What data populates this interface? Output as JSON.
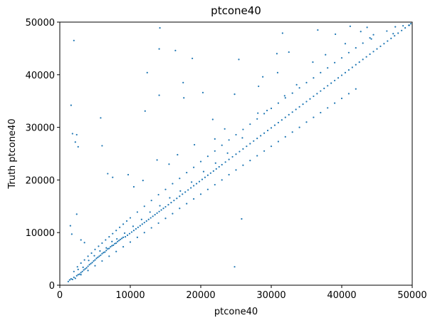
{
  "chart_data": {
    "type": "scatter",
    "title": "ptcone40",
    "xlabel": "ptcone40",
    "ylabel": "Truth ptcone40",
    "xlim": [
      0,
      50000
    ],
    "ylim": [
      0,
      50000
    ],
    "xticks": [
      0,
      10000,
      20000,
      30000,
      40000,
      50000
    ],
    "yticks": [
      0,
      10000,
      20000,
      30000,
      40000,
      50000
    ],
    "xtick_labels": [
      "0",
      "10000",
      "20000",
      "30000",
      "40000",
      "50000"
    ],
    "ytick_labels": [
      "0",
      "10000",
      "20000",
      "30000",
      "40000",
      "50000"
    ],
    "grid": false,
    "legend": "none",
    "marker_color": "#1f77b4",
    "series": [
      {
        "points": [
          [
            1200,
            700
          ],
          [
            1400,
            1000
          ],
          [
            1600,
            1200
          ],
          [
            1800,
            1100
          ],
          [
            2000,
            1500
          ],
          [
            2200,
            1300
          ],
          [
            2400,
            1800
          ],
          [
            2600,
            2000
          ],
          [
            2800,
            2100
          ],
          [
            3000,
            2400
          ],
          [
            3200,
            2600
          ],
          [
            3400,
            2900
          ],
          [
            3600,
            3100
          ],
          [
            3800,
            3300
          ],
          [
            4000,
            3600
          ],
          [
            4200,
            3900
          ],
          [
            4400,
            4100
          ],
          [
            4600,
            4300
          ],
          [
            4800,
            4600
          ],
          [
            5000,
            4800
          ],
          [
            5200,
            5100
          ],
          [
            5400,
            5300
          ],
          [
            5600,
            5500
          ],
          [
            5800,
            5700
          ],
          [
            6000,
            6000
          ],
          [
            6200,
            6200
          ],
          [
            6400,
            6300
          ],
          [
            6600,
            6600
          ],
          [
            6800,
            6900
          ],
          [
            7000,
            7000
          ],
          [
            7200,
            7300
          ],
          [
            7400,
            7500
          ],
          [
            7600,
            7600
          ],
          [
            7800,
            7900
          ],
          [
            8000,
            8000
          ],
          [
            8200,
            8300
          ],
          [
            8400,
            8500
          ],
          [
            8600,
            8700
          ],
          [
            8800,
            8900
          ],
          [
            9000,
            9100
          ],
          [
            9300,
            9200
          ],
          [
            9600,
            9500
          ],
          [
            9900,
            9800
          ],
          [
            10200,
            10100
          ],
          [
            10500,
            10400
          ],
          [
            10800,
            10700
          ],
          [
            11100,
            11000
          ],
          [
            11400,
            11300
          ],
          [
            11700,
            11600
          ],
          [
            12000,
            11900
          ],
          [
            12300,
            12200
          ],
          [
            12600,
            12500
          ],
          [
            12900,
            12800
          ],
          [
            13200,
            13100
          ],
          [
            13500,
            13400
          ],
          [
            13800,
            13700
          ],
          [
            14100,
            14000
          ],
          [
            14400,
            14300
          ],
          [
            14700,
            14600
          ],
          [
            15000,
            14900
          ],
          [
            15400,
            15300
          ],
          [
            15800,
            15700
          ],
          [
            16200,
            16100
          ],
          [
            16600,
            16500
          ],
          [
            17000,
            16900
          ],
          [
            17400,
            17300
          ],
          [
            17800,
            17700
          ],
          [
            18200,
            18100
          ],
          [
            18600,
            18500
          ],
          [
            19000,
            18900
          ],
          [
            19400,
            19300
          ],
          [
            19800,
            19700
          ],
          [
            20200,
            20100
          ],
          [
            20600,
            20500
          ],
          [
            21000,
            20900
          ],
          [
            21400,
            21300
          ],
          [
            21800,
            21700
          ],
          [
            22200,
            22100
          ],
          [
            22600,
            22500
          ],
          [
            23000,
            22900
          ],
          [
            23500,
            23400
          ],
          [
            24000,
            23900
          ],
          [
            24500,
            24400
          ],
          [
            25000,
            24900
          ],
          [
            25500,
            25400
          ],
          [
            26000,
            25900
          ],
          [
            26500,
            26400
          ],
          [
            27000,
            26900
          ],
          [
            27500,
            27400
          ],
          [
            28000,
            27900
          ],
          [
            28500,
            28400
          ],
          [
            29000,
            28900
          ],
          [
            29500,
            29400
          ],
          [
            30000,
            29900
          ],
          [
            30500,
            30400
          ],
          [
            31000,
            30900
          ],
          [
            31500,
            31400
          ],
          [
            32000,
            31900
          ],
          [
            32500,
            32400
          ],
          [
            33000,
            32900
          ],
          [
            33500,
            33400
          ],
          [
            34000,
            33900
          ],
          [
            34500,
            34400
          ],
          [
            35000,
            34900
          ],
          [
            35500,
            35400
          ],
          [
            36000,
            35900
          ],
          [
            36500,
            36400
          ],
          [
            37000,
            36900
          ],
          [
            37500,
            37400
          ],
          [
            38000,
            37900
          ],
          [
            38500,
            38400
          ],
          [
            39000,
            38900
          ],
          [
            39500,
            39400
          ],
          [
            40000,
            39900
          ],
          [
            40500,
            40400
          ],
          [
            41000,
            40900
          ],
          [
            41500,
            41400
          ],
          [
            42000,
            41900
          ],
          [
            42500,
            42400
          ],
          [
            43000,
            42900
          ],
          [
            43500,
            43400
          ],
          [
            44000,
            43900
          ],
          [
            44500,
            44400
          ],
          [
            45000,
            44900
          ],
          [
            45500,
            45400
          ],
          [
            46000,
            45900
          ],
          [
            46500,
            46400
          ],
          [
            47000,
            46900
          ],
          [
            47500,
            47400
          ],
          [
            48000,
            47900
          ],
          [
            48500,
            48400
          ],
          [
            49000,
            48900
          ],
          [
            49500,
            49400
          ],
          [
            49800,
            49700
          ],
          [
            2500,
            3500
          ],
          [
            3000,
            4200
          ],
          [
            3500,
            4800
          ],
          [
            4000,
            5500
          ],
          [
            4500,
            6100
          ],
          [
            5000,
            6800
          ],
          [
            5500,
            7400
          ],
          [
            6000,
            8000
          ],
          [
            6500,
            8600
          ],
          [
            7000,
            9200
          ],
          [
            7500,
            9800
          ],
          [
            8000,
            10400
          ],
          [
            8500,
            11000
          ],
          [
            9000,
            11600
          ],
          [
            9500,
            12200
          ],
          [
            10000,
            12800
          ],
          [
            11000,
            13900
          ],
          [
            12000,
            15000
          ],
          [
            13000,
            16100
          ],
          [
            14000,
            17200
          ],
          [
            15000,
            18200
          ],
          [
            16000,
            19300
          ],
          [
            17000,
            20300
          ],
          [
            18000,
            21400
          ],
          [
            19000,
            22400
          ],
          [
            20000,
            23500
          ],
          [
            21000,
            24500
          ],
          [
            22000,
            25500
          ],
          [
            23000,
            26600
          ],
          [
            24000,
            27600
          ],
          [
            25000,
            28600
          ],
          [
            26000,
            29600
          ],
          [
            27000,
            30600
          ],
          [
            28000,
            31600
          ],
          [
            29000,
            32600
          ],
          [
            30000,
            33600
          ],
          [
            31000,
            34600
          ],
          [
            32000,
            35600
          ],
          [
            33000,
            36500
          ],
          [
            34000,
            37500
          ],
          [
            35000,
            38500
          ],
          [
            36000,
            39400
          ],
          [
            37000,
            40400
          ],
          [
            38000,
            41300
          ],
          [
            39000,
            42300
          ],
          [
            40000,
            43200
          ],
          [
            41000,
            44200
          ],
          [
            42000,
            45100
          ],
          [
            43000,
            46000
          ],
          [
            44000,
            47000
          ],
          [
            3000,
            2000
          ],
          [
            4000,
            2800
          ],
          [
            5000,
            3700
          ],
          [
            6000,
            4600
          ],
          [
            7000,
            5500
          ],
          [
            8000,
            6400
          ],
          [
            9000,
            7300
          ],
          [
            10000,
            8200
          ],
          [
            11000,
            9100
          ],
          [
            12000,
            10000
          ],
          [
            13000,
            10900
          ],
          [
            14000,
            11800
          ],
          [
            15000,
            12700
          ],
          [
            16000,
            13600
          ],
          [
            17000,
            14600
          ],
          [
            18000,
            15500
          ],
          [
            19000,
            16400
          ],
          [
            20000,
            17300
          ],
          [
            21000,
            18200
          ],
          [
            22000,
            19100
          ],
          [
            23000,
            20000
          ],
          [
            24000,
            21000
          ],
          [
            25000,
            21900
          ],
          [
            26000,
            22800
          ],
          [
            27000,
            23700
          ],
          [
            28000,
            24600
          ],
          [
            29000,
            25500
          ],
          [
            30000,
            26400
          ],
          [
            31000,
            27300
          ],
          [
            32000,
            28200
          ],
          [
            33000,
            29100
          ],
          [
            34000,
            30000
          ],
          [
            35000,
            31000
          ],
          [
            36000,
            31900
          ],
          [
            37000,
            32800
          ],
          [
            38000,
            33700
          ],
          [
            39000,
            34600
          ],
          [
            40000,
            35500
          ],
          [
            41000,
            36400
          ],
          [
            42000,
            37300
          ],
          [
            2000,
            2600
          ],
          [
            2600,
            3000
          ],
          [
            3300,
            3400
          ],
          [
            4100,
            4700
          ],
          [
            4900,
            5600
          ],
          [
            5700,
            6500
          ],
          [
            6600,
            7100
          ],
          [
            7400,
            8300
          ],
          [
            8100,
            8800
          ],
          [
            9200,
            9900
          ],
          [
            10400,
            11200
          ],
          [
            11600,
            12500
          ],
          [
            12800,
            13900
          ],
          [
            14200,
            15100
          ],
          [
            15600,
            16600
          ],
          [
            17100,
            17900
          ],
          [
            18700,
            19600
          ],
          [
            20400,
            21600
          ],
          [
            22100,
            23200
          ],
          [
            23800,
            25100
          ],
          [
            1800,
            28800
          ],
          [
            2400,
            28600
          ],
          [
            2200,
            27200
          ],
          [
            2600,
            26300
          ],
          [
            6000,
            26500
          ],
          [
            1600,
            34200
          ],
          [
            2000,
            46500
          ],
          [
            5800,
            31800
          ],
          [
            12100,
            33100
          ],
          [
            12400,
            40400
          ],
          [
            14100,
            44900
          ],
          [
            14200,
            48900
          ],
          [
            16400,
            44600
          ],
          [
            18800,
            43100
          ],
          [
            17500,
            38500
          ],
          [
            17600,
            35600
          ],
          [
            24800,
            36300
          ],
          [
            30800,
            44000
          ],
          [
            31600,
            47900
          ],
          [
            32500,
            44300
          ],
          [
            36600,
            48500
          ],
          [
            39100,
            47700
          ],
          [
            41200,
            49200
          ],
          [
            42700,
            48200
          ],
          [
            43600,
            49000
          ],
          [
            44500,
            47600
          ],
          [
            46400,
            48300
          ],
          [
            47600,
            49100
          ],
          [
            48700,
            49300
          ],
          [
            49600,
            49400
          ],
          [
            20300,
            36600
          ],
          [
            25400,
            42900
          ],
          [
            25800,
            12600
          ],
          [
            24800,
            3500
          ],
          [
            14100,
            36100
          ],
          [
            21700,
            31500
          ],
          [
            28200,
            37800
          ],
          [
            28800,
            39600
          ],
          [
            30900,
            40400
          ],
          [
            33600,
            38100
          ],
          [
            1500,
            11300
          ],
          [
            1700,
            9700
          ],
          [
            2400,
            13500
          ],
          [
            3000,
            8600
          ],
          [
            3500,
            8100
          ],
          [
            6800,
            21200
          ],
          [
            7500,
            20500
          ],
          [
            9700,
            21000
          ],
          [
            10500,
            18700
          ],
          [
            11800,
            19900
          ],
          [
            13800,
            23800
          ],
          [
            15500,
            23000
          ],
          [
            16700,
            24800
          ],
          [
            19100,
            26700
          ],
          [
            22000,
            27800
          ],
          [
            23400,
            29700
          ],
          [
            25900,
            28000
          ],
          [
            28100,
            32700
          ],
          [
            29400,
            33200
          ],
          [
            31900,
            36000
          ],
          [
            35900,
            42400
          ],
          [
            37700,
            43800
          ],
          [
            40500,
            45900
          ],
          [
            44200,
            46800
          ],
          [
            47300,
            47800
          ]
        ]
      }
    ]
  }
}
